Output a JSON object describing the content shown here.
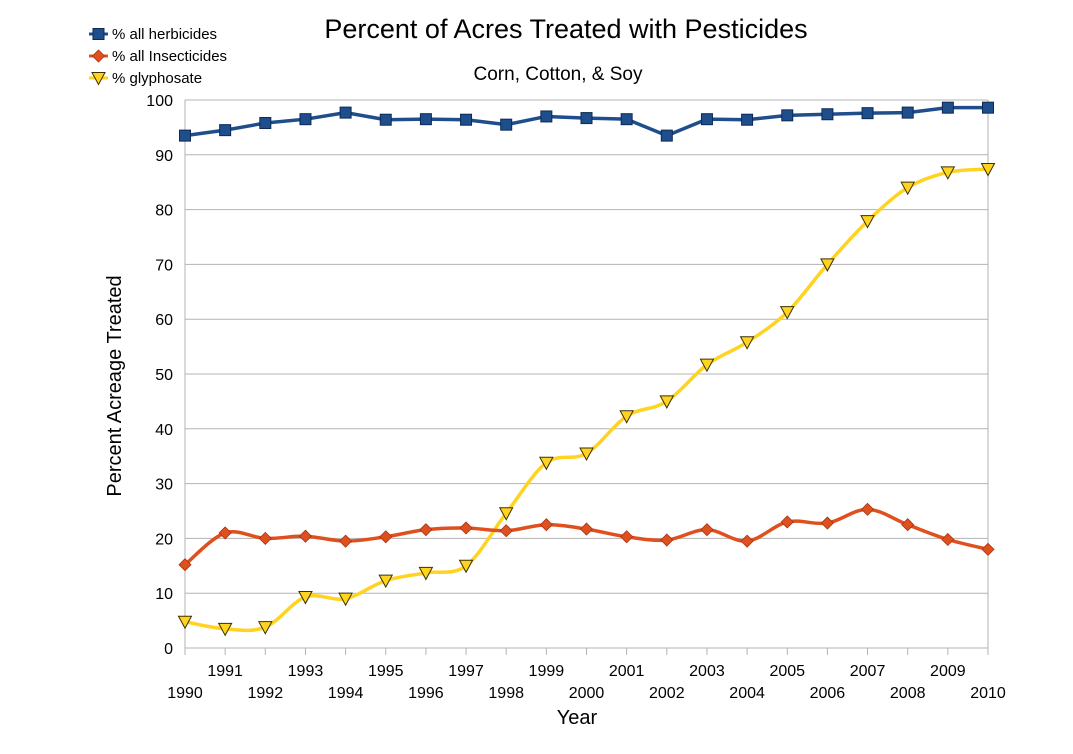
{
  "chart_data": {
    "type": "line",
    "title": "Percent of Acres Treated with Pesticides",
    "subtitle": "Corn, Cotton, & Soy",
    "xlabel": "Year",
    "ylabel": "Percent Acreage Treated",
    "xlim": [
      1990,
      2010
    ],
    "ylim": [
      0,
      100
    ],
    "yticks": [
      0,
      10,
      20,
      30,
      40,
      50,
      60,
      70,
      80,
      90,
      100
    ],
    "x": [
      1990,
      1991,
      1992,
      1993,
      1994,
      1995,
      1996,
      1997,
      1998,
      1999,
      2000,
      2001,
      2002,
      2003,
      2004,
      2005,
      2006,
      2007,
      2008,
      2009,
      2010
    ],
    "x_tick_labels": [
      "1990",
      "1991",
      "1992",
      "1993",
      "1994",
      "1995",
      "1996",
      "1997",
      "1998",
      "1999",
      "2000",
      "2001",
      "2002",
      "2003",
      "2004",
      "2005",
      "2006",
      "2007",
      "2008",
      "2009",
      "2010"
    ],
    "grid": "horizontal",
    "legend_position": "top-left",
    "series": [
      {
        "name": "% all herbicides",
        "color": "#1f4e8c",
        "marker": "square",
        "values": [
          93.5,
          94.5,
          95.8,
          96.5,
          97.7,
          96.4,
          96.5,
          96.4,
          95.5,
          97.0,
          96.7,
          96.5,
          93.5,
          96.5,
          96.4,
          97.2,
          97.4,
          97.6,
          97.7,
          98.6,
          98.6
        ]
      },
      {
        "name": "% all Insecticides",
        "color": "#e0501e",
        "marker": "diamond",
        "values": [
          15.2,
          21.0,
          20.0,
          20.4,
          19.5,
          20.3,
          21.6,
          21.9,
          21.4,
          22.5,
          21.7,
          20.3,
          19.7,
          21.6,
          19.5,
          23.0,
          22.8,
          25.3,
          22.5,
          19.8,
          18.0
        ]
      },
      {
        "name": "% glyphosate",
        "color": "#ffd320",
        "marker": "triangle-down",
        "values": [
          4.8,
          3.5,
          3.8,
          9.3,
          9.0,
          12.3,
          13.7,
          15.0,
          24.6,
          33.8,
          35.5,
          42.3,
          45.0,
          51.7,
          55.8,
          61.3,
          70.0,
          77.9,
          84.0,
          86.8,
          87.4
        ]
      }
    ]
  }
}
